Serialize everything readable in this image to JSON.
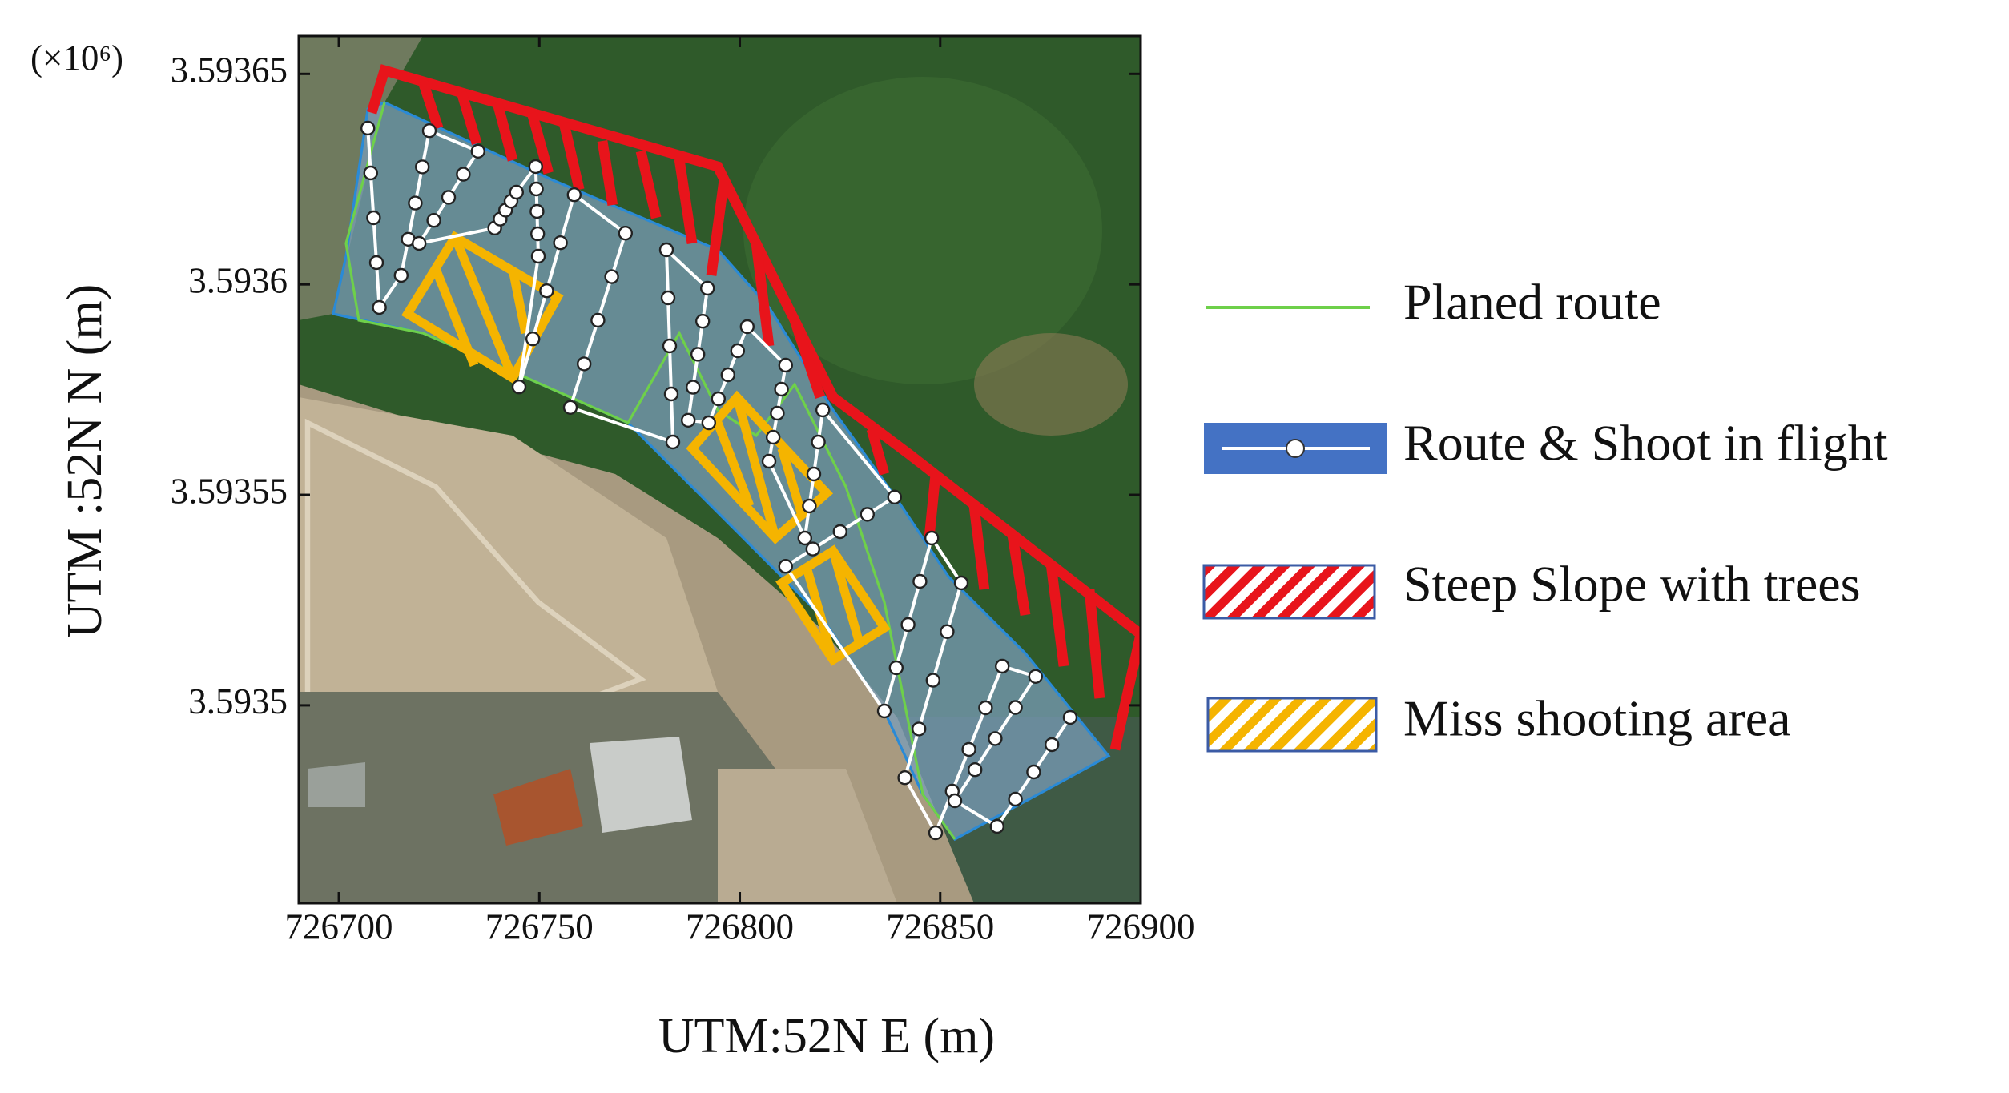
{
  "map_figure": {
    "multiplier": "(×10⁶)",
    "xlabel": "UTM:52N E (m)",
    "ylabel": "UTM :52N   N (m)",
    "xlim": [
      726690,
      726900
    ],
    "ylim": [
      3.593453,
      3.593659
    ],
    "xticks": [
      726700,
      726750,
      726800,
      726850,
      726900
    ],
    "yticks": [
      3.59365,
      3.5936,
      3.59355,
      3.5935
    ],
    "legend": [
      "Planed route",
      "Route & Shoot in flight",
      "Steep Slope with trees",
      "Miss shooting area"
    ]
  }
}
